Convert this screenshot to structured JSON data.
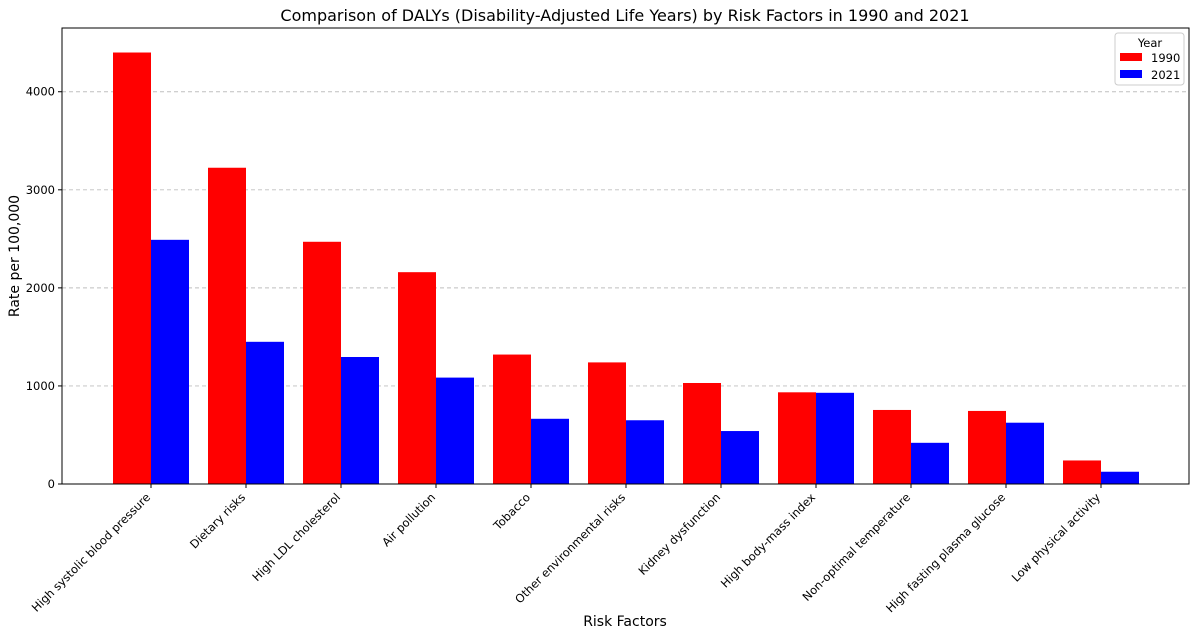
{
  "chart_data": {
    "type": "bar",
    "title": "Comparison of DALYs (Disability-Adjusted Life Years) by Risk Factors in 1990 and 2021",
    "xlabel": "Risk Factors",
    "ylabel": "Rate per 100,000",
    "ylim": [
      0,
      4650
    ],
    "yticks": [
      0,
      1000,
      2000,
      3000,
      4000
    ],
    "grid": "y-dashed",
    "legend": {
      "title": "Year",
      "placement": "top-right"
    },
    "categories": [
      "High systolic blood pressure",
      "Dietary risks",
      "High LDL cholesterol",
      "Air pollution",
      "Tobacco",
      "Other environmental risks",
      "Kidney dysfunction",
      "High body-mass index",
      "Non-optimal temperature",
      "High fasting plasma glucose",
      "Low physical activity"
    ],
    "series": [
      {
        "name": "1990",
        "color": "#ff0000",
        "values": [
          4400,
          3225,
          2470,
          2160,
          1320,
          1240,
          1030,
          935,
          755,
          745,
          240
        ]
      },
      {
        "name": "2021",
        "color": "#0000ff",
        "values": [
          2490,
          1450,
          1295,
          1085,
          665,
          650,
          540,
          930,
          420,
          625,
          125
        ]
      }
    ]
  }
}
